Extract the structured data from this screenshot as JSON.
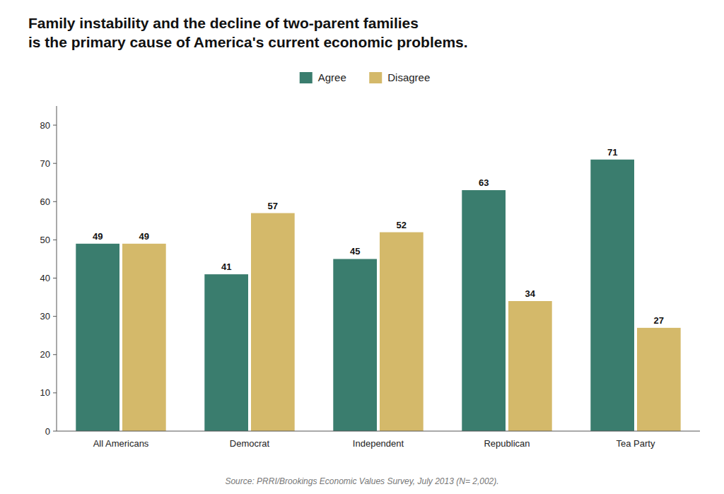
{
  "chart_data": {
    "type": "bar",
    "title": "Family instability and the decline of two-parent families\nis the primary cause of America's current economic problems.",
    "source": "Source: PRRI/Brookings Economic Values Survey, July 2013 (N= 2,002).",
    "categories": [
      "All Americans",
      "Democrat",
      "Independent",
      "Republican",
      "Tea Party"
    ],
    "series": [
      {
        "name": "Agree",
        "color": "#3a7d6e",
        "values": [
          49,
          41,
          45,
          63,
          71
        ]
      },
      {
        "name": "Disagree",
        "color": "#d4b96a",
        "values": [
          49,
          57,
          52,
          34,
          27
        ]
      }
    ],
    "ylim": [
      0,
      85
    ],
    "yticks": [
      0,
      10,
      20,
      30,
      40,
      50,
      60,
      70,
      80
    ],
    "data_labels": true,
    "legend": "top",
    "grid": false
  }
}
